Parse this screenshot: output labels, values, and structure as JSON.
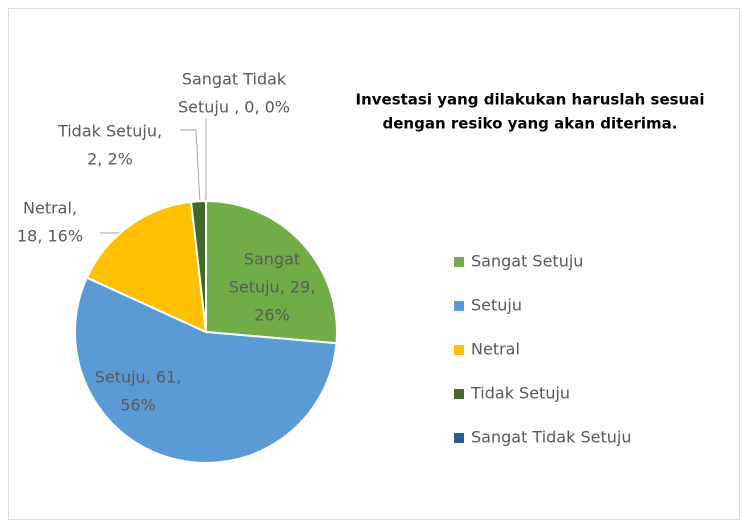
{
  "chart_data": {
    "type": "pie",
    "title": [
      "Investasi yang dilakukan haruslah sesuai",
      "dengan resiko yang akan diterima."
    ],
    "categories": [
      "Sangat Setuju",
      "Setuju",
      "Netral",
      "Tidak Setuju",
      "Sangat Tidak Setuju"
    ],
    "values": [
      29,
      61,
      18,
      2,
      0
    ],
    "value_labels": [
      [
        "Sangat",
        "Setuju, 29,",
        "26%"
      ],
      [
        "Setuju, 61,",
        "56%"
      ],
      [
        "Netral,",
        "18, 16%"
      ],
      [
        "Tidak Setuju,",
        "2, 2%"
      ],
      [
        "Sangat Tidak",
        "Setuju , 0, 0%"
      ]
    ],
    "colors": [
      "#70ad47",
      "#5b9bd5",
      "#ffc000",
      "#43682b",
      "#255e91"
    ],
    "legend": "right"
  }
}
